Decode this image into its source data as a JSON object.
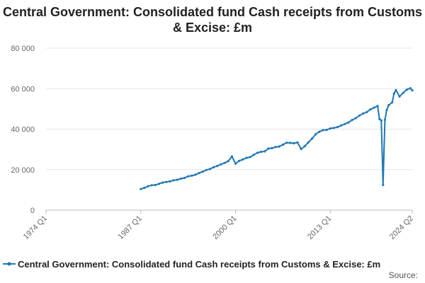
{
  "chart_data": {
    "type": "line",
    "title": "Central Government: Consolidated fund Cash receipts from Customs & Excise: £m",
    "xlabel": "",
    "ylabel": "",
    "x_range": [
      "1974 Q1",
      "2024 Q2"
    ],
    "x_ticks": [
      "1974 Q1",
      "1987 Q1",
      "2000 Q1",
      "2013 Q1",
      "2024 Q2"
    ],
    "y_ticks": [
      "0",
      "20 000",
      "40 000",
      "60 000",
      "80 000"
    ],
    "ylim": [
      0,
      80000
    ],
    "grid": "horizontal",
    "legend_position": "bottom",
    "series": [
      {
        "name": "Central Government: Consolidated fund Cash receipts from Customs & Excise: £m",
        "color": "#1f78b4",
        "points": [
          [
            "1987 Q1",
            10400
          ],
          [
            "1987 Q3",
            11000
          ],
          [
            "1988 Q1",
            11800
          ],
          [
            "1988 Q3",
            12300
          ],
          [
            "1989 Q1",
            12400
          ],
          [
            "1989 Q3",
            13000
          ],
          [
            "1990 Q1",
            13600
          ],
          [
            "1990 Q3",
            13900
          ],
          [
            "1991 Q1",
            14200
          ],
          [
            "1991 Q3",
            14700
          ],
          [
            "1992 Q1",
            15000
          ],
          [
            "1992 Q3",
            15500
          ],
          [
            "1993 Q1",
            15900
          ],
          [
            "1993 Q3",
            16700
          ],
          [
            "1994 Q1",
            17000
          ],
          [
            "1994 Q3",
            17500
          ],
          [
            "1995 Q1",
            18300
          ],
          [
            "1995 Q3",
            19000
          ],
          [
            "1996 Q1",
            19800
          ],
          [
            "1996 Q3",
            20300
          ],
          [
            "1997 Q1",
            21200
          ],
          [
            "1997 Q3",
            21800
          ],
          [
            "1998 Q1",
            22600
          ],
          [
            "1998 Q3",
            23300
          ],
          [
            "1999 Q1",
            24200
          ],
          [
            "1999 Q3",
            26500
          ],
          [
            "2000 Q1",
            23000
          ],
          [
            "2000 Q3",
            24300
          ],
          [
            "2001 Q1",
            25000
          ],
          [
            "2001 Q3",
            25800
          ],
          [
            "2002 Q1",
            26200
          ],
          [
            "2002 Q3",
            27300
          ],
          [
            "2003 Q1",
            28300
          ],
          [
            "2003 Q3",
            28800
          ],
          [
            "2004 Q1",
            29000
          ],
          [
            "2004 Q3",
            30400
          ],
          [
            "2005 Q1",
            30600
          ],
          [
            "2005 Q3",
            31200
          ],
          [
            "2006 Q1",
            31400
          ],
          [
            "2006 Q3",
            32300
          ],
          [
            "2007 Q1",
            33300
          ],
          [
            "2007 Q3",
            33200
          ],
          [
            "2008 Q1",
            33000
          ],
          [
            "2008 Q3",
            33400
          ],
          [
            "2009 Q1",
            30200
          ],
          [
            "2009 Q3",
            31500
          ],
          [
            "2010 Q1",
            33500
          ],
          [
            "2010 Q3",
            35300
          ],
          [
            "2011 Q1",
            37500
          ],
          [
            "2011 Q3",
            38700
          ],
          [
            "2012 Q1",
            39500
          ],
          [
            "2012 Q3",
            39600
          ],
          [
            "2013 Q1",
            40300
          ],
          [
            "2013 Q3",
            40600
          ],
          [
            "2014 Q1",
            41000
          ],
          [
            "2014 Q3",
            41800
          ],
          [
            "2015 Q1",
            42500
          ],
          [
            "2015 Q3",
            43300
          ],
          [
            "2016 Q1",
            44500
          ],
          [
            "2016 Q3",
            45400
          ],
          [
            "2017 Q1",
            46700
          ],
          [
            "2017 Q3",
            47700
          ],
          [
            "2018 Q1",
            48400
          ],
          [
            "2018 Q3",
            49700
          ],
          [
            "2019 Q1",
            50600
          ],
          [
            "2019 Q3",
            51400
          ],
          [
            "2019 Q4",
            45000
          ],
          [
            "2020 Q1",
            44300
          ],
          [
            "2020 Q2",
            12400
          ],
          [
            "2020 Q3",
            44600
          ],
          [
            "2020 Q4",
            49500
          ],
          [
            "2021 Q1",
            51800
          ],
          [
            "2021 Q3",
            53200
          ],
          [
            "2021 Q4",
            57600
          ],
          [
            "2022 Q1",
            59300
          ],
          [
            "2022 Q3",
            56100
          ],
          [
            "2023 Q1",
            57900
          ],
          [
            "2023 Q3",
            59500
          ],
          [
            "2024 Q1",
            60200
          ],
          [
            "2024 Q2",
            59100
          ]
        ]
      }
    ],
    "source_label": "Source:"
  }
}
